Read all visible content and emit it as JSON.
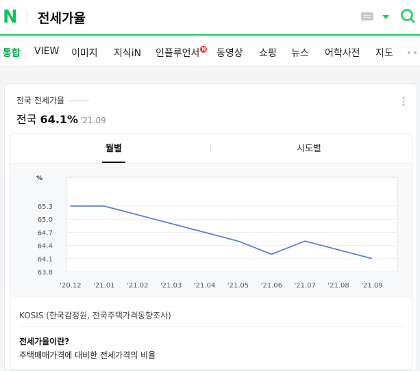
{
  "header": {
    "logo": "N",
    "query": "전세가율",
    "icons": [
      "keyboard-icon",
      "caret-down-icon",
      "search-icon"
    ],
    "accent": "#19ce60"
  },
  "tabs": [
    {
      "label": "통합",
      "active": true
    },
    {
      "label": "VIEW"
    },
    {
      "label": "이미지"
    },
    {
      "label": "지식iN"
    },
    {
      "label": "인플루언서",
      "badge": "N"
    },
    {
      "label": "동영상"
    },
    {
      "label": "쇼핑"
    },
    {
      "label": "뉴스"
    },
    {
      "label": "어학사전"
    },
    {
      "label": "지도"
    }
  ],
  "card": {
    "label": "전국 전세가율",
    "region": "전국",
    "rate": "64.1%",
    "period": "'21.09",
    "sub_tabs": [
      "월별",
      "시도별"
    ],
    "source": "KOSIS (한국감정원, 전국주택가격동향조사)",
    "definition_title": "전세가율이란?",
    "definition_text": "주택매매가격에 대비한 전세가격의 비율"
  },
  "chart_data": {
    "type": "line",
    "ylabel": "%",
    "categories": [
      "'20.12",
      "'21.01",
      "'21.02",
      "'21.03",
      "'21.04",
      "'21.05",
      "'21.06",
      "'21.07",
      "'21.08",
      "'21.09"
    ],
    "series": [
      {
        "values": [
          65.3,
          65.3,
          65.1,
          64.9,
          64.7,
          64.5,
          64.2,
          64.5,
          64.3,
          64.1
        ]
      }
    ],
    "yticks": [
      "65.3",
      "65.0",
      "64.7",
      "64.4",
      "64.1",
      "63.8"
    ],
    "ylim": [
      63.8,
      65.3
    ],
    "grid": true,
    "color": "#5b7fd6"
  }
}
